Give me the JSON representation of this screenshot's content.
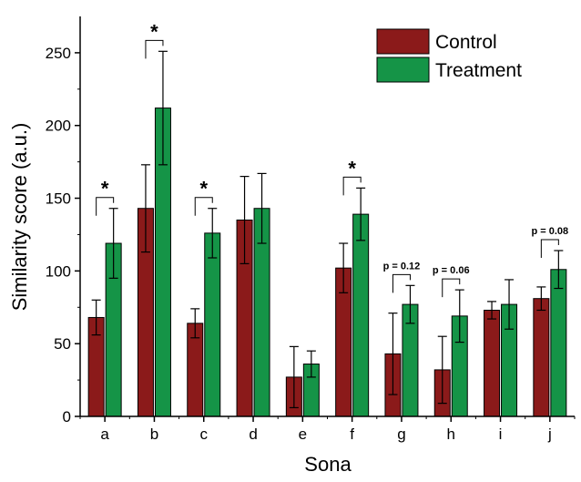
{
  "chart_data": {
    "type": "bar",
    "title": "",
    "xlabel": "Sona",
    "ylabel": "Similarity score (a.u.)",
    "ylim": [
      0,
      275
    ],
    "yticks": [
      0,
      50,
      100,
      150,
      200,
      250
    ],
    "categories": [
      "a",
      "b",
      "c",
      "d",
      "e",
      "f",
      "g",
      "h",
      "i",
      "j"
    ],
    "series": [
      {
        "name": "Control",
        "color": "#8b1a1a",
        "values": [
          68,
          143,
          64,
          135,
          27,
          102,
          43,
          32,
          73,
          81
        ],
        "errors": [
          12,
          30,
          10,
          30,
          21,
          17,
          28,
          23,
          6,
          8
        ]
      },
      {
        "name": "Treatment",
        "color": "#159447",
        "values": [
          119,
          212,
          126,
          143,
          36,
          139,
          77,
          69,
          77,
          101
        ],
        "errors": [
          24,
          39,
          17,
          24,
          9,
          18,
          13,
          18,
          17,
          13
        ]
      }
    ],
    "significance": [
      {
        "category": "a",
        "label": "*"
      },
      {
        "category": "b",
        "label": "*"
      },
      {
        "category": "c",
        "label": "*"
      },
      {
        "category": "f",
        "label": "*"
      },
      {
        "category": "g",
        "label": "p = 0.12"
      },
      {
        "category": "h",
        "label": "p = 0.06"
      },
      {
        "category": "j",
        "label": "p = 0.08"
      }
    ],
    "legend_position": "top-right",
    "grid": false
  }
}
